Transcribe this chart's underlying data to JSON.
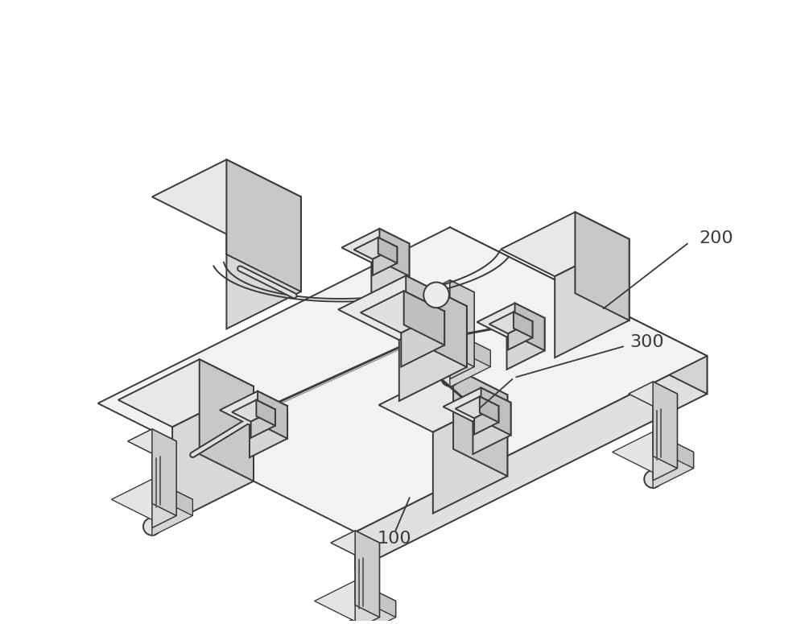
{
  "background_color": "#ffffff",
  "line_color": "#3a3a3a",
  "line_width": 1.4,
  "fill_top": "#efefef",
  "fill_left": "#e0e0e0",
  "fill_right": "#d0d0d0",
  "fill_dark": "#c0c0c0",
  "label_100": [
    0.478,
    0.072
  ],
  "label_200": [
    0.872,
    0.378
  ],
  "label_300": [
    0.805,
    0.468
  ],
  "figsize": [
    10.0,
    7.75
  ],
  "dpi": 100
}
